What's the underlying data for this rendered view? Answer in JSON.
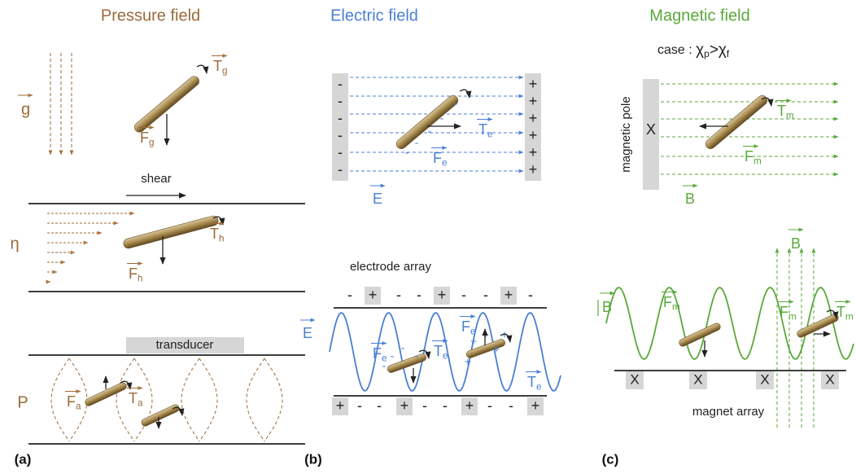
{
  "titles": [
    "Pressure field",
    "Electric field",
    "Magnetic field"
  ],
  "panel_tags": [
    "(a)",
    "(b)",
    "(c)"
  ],
  "pressure": {
    "gravity": {
      "field": "g",
      "torque": {
        "s": "T",
        "sub": "g"
      },
      "force": {
        "s": "F",
        "sub": "g"
      }
    },
    "viscous": {
      "shear": "shear",
      "symbol": "η",
      "torque": {
        "s": "T",
        "sub": "h"
      },
      "force": {
        "s": "F",
        "sub": "h"
      }
    },
    "acoustic": {
      "transducer": "transducer",
      "symbol": "P",
      "force": {
        "s": "F",
        "sub": "a"
      },
      "torque": {
        "s": "T",
        "sub": "a"
      }
    }
  },
  "electric": {
    "uniform": {
      "left_plate": [
        "-",
        "-",
        "-",
        "-",
        "-",
        "-"
      ],
      "right_plate": [
        "+",
        "+",
        "+",
        "+",
        "+",
        "+"
      ],
      "particle_charges": [
        "-",
        "-",
        "-",
        "-",
        "-"
      ],
      "torque": {
        "s": "T",
        "sub": "e"
      },
      "force": {
        "s": "F",
        "sub": "e"
      },
      "field": "E"
    },
    "array": {
      "label": "electrode array",
      "top_electrodes": [
        "-",
        "+",
        "-",
        "-",
        "+",
        "-",
        "-",
        "+",
        "-"
      ],
      "bottom_electrodes": [
        "+",
        "-",
        "-",
        "+",
        "-",
        "-",
        "+",
        "-",
        "-",
        "+"
      ],
      "field": "E",
      "forces": [
        {
          "s": "F",
          "sub": "e"
        },
        {
          "s": "F",
          "sub": "e"
        }
      ],
      "torques": [
        {
          "s": "T",
          "sub": "e"
        },
        {
          "s": "T",
          "sub": "e"
        }
      ],
      "charges_left": [
        "-",
        "-",
        "-",
        "-"
      ],
      "charges_right": [
        "+",
        "+",
        "+",
        "+",
        "+"
      ]
    }
  },
  "magnetic": {
    "case": {
      "prefix": "case : ",
      "chi_p": {
        "s": "χ",
        "sub": "p"
      },
      "relation": ">",
      "chi_f": {
        "s": "χ",
        "sub": "f"
      }
    },
    "uniform": {
      "pole_label": "magnetic pole",
      "pole": "X",
      "torque": {
        "s": "T",
        "sub": "m"
      },
      "force": {
        "s": "F",
        "sub": "m"
      },
      "field": "B"
    },
    "array": {
      "field_vertical": "B",
      "field_wave": "B",
      "forces": [
        {
          "s": "F",
          "sub": "m"
        },
        {
          "s": "F",
          "sub": "m"
        }
      ],
      "torque": {
        "s": "T",
        "sub": "m"
      },
      "magnets": [
        "X",
        "X",
        "X",
        "X"
      ],
      "label": "magnet array"
    }
  }
}
